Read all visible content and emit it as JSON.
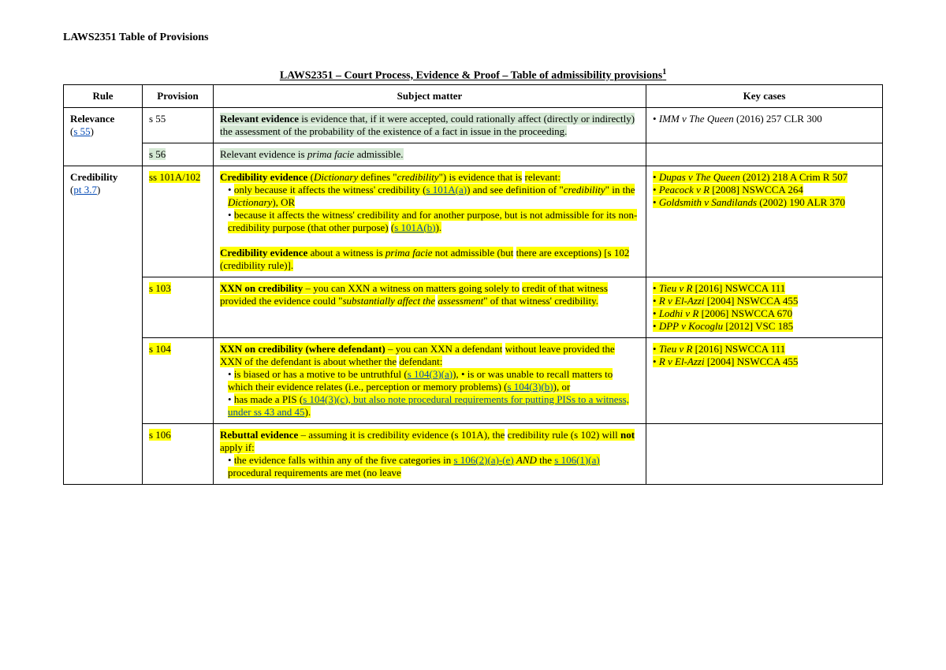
{
  "page_header": "LAWS2351 Table of Provisions",
  "table_title": "LAWS2351 – Court Process, Evidence & Proof – Table of admissibility provisions",
  "table_title_sup": "1",
  "headers": {
    "rule": "Rule",
    "provision": "Provision",
    "subject": "Subject matter",
    "keycases": "Key cases"
  },
  "rows": {
    "relevance": {
      "rule_label": "Relevance",
      "rule_link": "s 55",
      "prov1": "s 55",
      "subj1_a": "Relevant evidence",
      "subj1_b": " is evidence that, if it were accepted, could rationally ",
      "subj1_c": " affect (directly or indirectly) the assessment of the probability of the ",
      "subj1_d": " existence of a fact in issue in the proceeding.",
      "key1_case": "IMM v The Queen",
      "key1_cite": " (2016) 257 CLR 300",
      "prov2": "s 56",
      "subj2_a": "Relevant evidence is ",
      "subj2_b": "prima facie",
      "subj2_c": " admissible."
    },
    "credibility": {
      "rule_label": "Credibility",
      "rule_link": "pt 3.7",
      "prov1": "ss 101A/102",
      "s1_head_a": "Credibility evidence",
      "s1_head_b": " (",
      "s1_head_c": "Dictionary",
      "s1_head_d": " defines \"",
      "s1_head_e": "credibility",
      "s1_head_f": "\") is evidence that is",
      "s1_head_g": " relevant:",
      "s1_b1_a": "only because it affects the witness' credibility (",
      "s1_b1_b": "s 101A(a)",
      "s1_b1_c": ") and see definition of \"",
      "s1_b1_d": "credibility",
      "s1_b1_e": "\" in the ",
      "s1_b1_f": "Dictionary",
      "s1_b1_g": "), OR",
      "s1_b2_a": "because it affects the witness' credibility and for another purpose, but is not admissible for its non-credibility purpose (that other purpose)",
      "s1_b2_b": " (",
      "s1_b2_c": "s 101A(b)",
      "s1_b2_d": ").",
      "s1_tail_a": "Credibility evidence",
      "s1_tail_b": " about a witness is ",
      "s1_tail_c": "prima facie",
      "s1_tail_d": " not admissible (but",
      "s1_tail_e": " there are exceptions) [s 102 (credibility rule)].",
      "key1_c1a": "Dupas v The Queen",
      "key1_c1b": " (2012) 218 A Crim R 507",
      "key1_c2a": "Peacock v R",
      "key1_c2b": " [2008] NSWCCA 264",
      "key1_c3a": "Goldsmith v Sandilands",
      "key1_c3b": " (2002) 190 ALR 370",
      "prov2": "s 103",
      "s2_a": "XXN on credibility",
      "s2_b": " – you can XXN a witness on matters going solely to",
      "s2_c": " credit of that witness provided the evidence could \"",
      "s2_d": "substantially affect the",
      "s2_e": " assessment",
      "s2_f": "\" of that witness' credibility.",
      "key2_c1a": "Tieu v R",
      "key2_c1b": " [2016] NSWCCA 111",
      "key2_c2a": "R v El-Azzi",
      "key2_c2b": " [2004] NSWCCA 455",
      "key2_c3a": "Lodhi v R",
      "key2_c3b": " [2006] NSWCCA 670",
      "key2_c4a": "DPP v Kocoglu",
      "key2_c4b": " [2012] VSC 185",
      "prov3": "s 104",
      "s3_a": "XXN on credibility (where defendant)",
      "s3_b": " – you can XXN a defendant",
      "s3_c": " without leave provided the XXN of the defendant is about whether the",
      "s3_d": " defendant:",
      "s3_b1_a": "is biased or has a motive to be untruthful (",
      "s3_b1_b": "s 104(3)(a)",
      "s3_b1_c": "), ",
      "s3_b1_d": "is or was unable to recall matters to which their evidence relates (i.e., perception or memory problems) (",
      "s3_b1_e": "s 104(3)(b)",
      "s3_b1_f": "), or",
      "s3_b2_a": "has made a PIS (",
      "s3_b2_b": "s 104(3)(c), but also note procedural requirements for putting PISs to a witness, under ss 43 and 45",
      "s3_b2_c": ").",
      "key3_c1a": "Tieu v R",
      "key3_c1b": " [2016] NSWCCA 111",
      "key3_c2a": "R v El-Azzi",
      "key3_c2b": " [2004] NSWCCA 455",
      "prov4": "s 106",
      "s4_a": "Rebuttal evidence",
      "s4_b": " – assuming it is credibility evidence (s 101A), the",
      "s4_c": " credibility rule (s 102) will ",
      "s4_d": "not",
      "s4_e": " apply if:",
      "s4_b1_a": "the evidence falls within any of the five categories in ",
      "s4_b1_b": "s 106(2)(a)-(e)",
      "s4_b1_c": " ",
      "s4_b1_d": "AND",
      "s4_b1_e": " the ",
      "s4_b1_f": "s 106(1)(a) ",
      "s4_b1_g": "procedural requirements are met (no leave"
    }
  },
  "colors": {
    "highlight_green": "#d5e8d4",
    "highlight_yellow": "#ffff00",
    "link": "#0047b3",
    "border": "#000000",
    "background": "#ffffff"
  }
}
